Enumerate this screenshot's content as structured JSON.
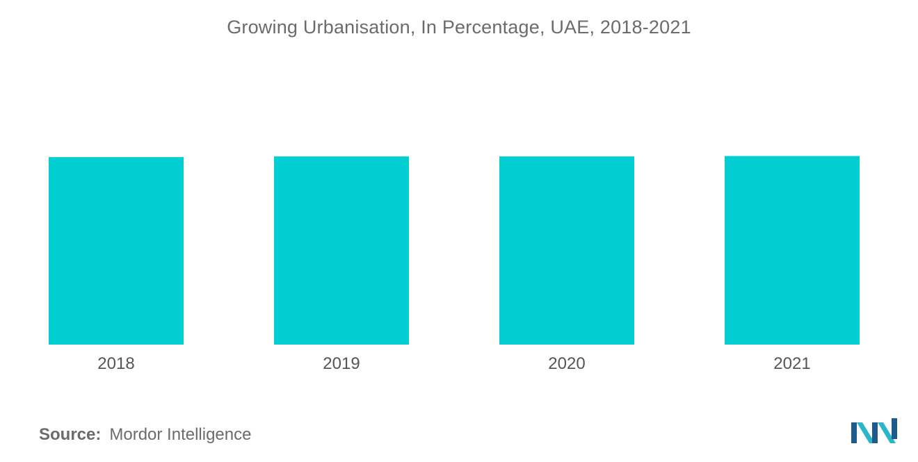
{
  "chart_data": {
    "type": "bar",
    "title": "Growing Urbanisation, In Percentage, UAE, 2018-2021",
    "categories": [
      "2018",
      "2019",
      "2020",
      "2021"
    ],
    "values": [
      86.5,
      86.8,
      86.8,
      87.0
    ],
    "ylim": [
      0,
      100
    ],
    "xlabel": "",
    "ylabel": "",
    "grid": false,
    "bar_color": "#00CED1"
  },
  "source": {
    "label": "Source:",
    "text": "Mordor Intelligence"
  },
  "logo": {
    "icon": "mordor-intelligence-logo-icon",
    "colors": [
      "#1e5a8a",
      "#2bb5c9"
    ]
  }
}
